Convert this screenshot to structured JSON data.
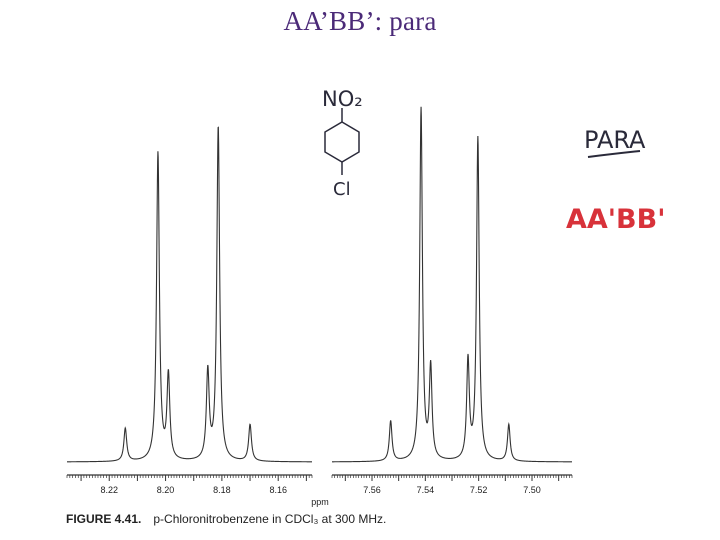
{
  "title": "AA’BB’: para",
  "caption": {
    "figure": "FIGURE 4.41.",
    "text": "p-Chloronitrobenzene in CDCl₃ at 300 MHz."
  },
  "annotations": {
    "para": "PARA",
    "aabb": "AA'BB'",
    "structure_top": "NO₂",
    "structure_bottom": "Cl"
  },
  "colors": {
    "title": "#4b2a78",
    "handwriting_red": "#d8323a",
    "trace": "#333333"
  },
  "chart_data": {
    "type": "line",
    "title": "",
    "xlabel": "ppm",
    "ylabel": "",
    "grid": false,
    "panels": [
      {
        "name": "",
        "xlim": [
          8.235,
          8.148
        ],
        "ticks": [
          {
            "value": 8.22,
            "label": "8.22"
          },
          {
            "value": 8.2,
            "label": "8.20"
          },
          {
            "value": 8.18,
            "label": "8.18"
          },
          {
            "value": 8.16,
            "label": "8.16"
          }
        ],
        "peaks": [
          {
            "ppm": 8.2143,
            "height": 0.09
          },
          {
            "ppm": 8.2027,
            "height": 0.84
          },
          {
            "ppm": 8.199,
            "height": 0.23
          },
          {
            "ppm": 8.185,
            "height": 0.24
          },
          {
            "ppm": 8.1813,
            "height": 0.91
          },
          {
            "ppm": 8.17,
            "height": 0.1
          }
        ]
      },
      {
        "name": "",
        "xlim": [
          7.575,
          7.485
        ],
        "ticks": [
          {
            "value": 7.56,
            "label": "7.56"
          },
          {
            "value": 7.54,
            "label": "7.54"
          },
          {
            "value": 7.52,
            "label": "7.52"
          },
          {
            "value": 7.5,
            "label": "7.50"
          }
        ],
        "peaks": [
          {
            "ppm": 7.553,
            "height": 0.11
          },
          {
            "ppm": 7.5416,
            "height": 0.96
          },
          {
            "ppm": 7.538,
            "height": 0.25
          },
          {
            "ppm": 7.524,
            "height": 0.27
          },
          {
            "ppm": 7.5203,
            "height": 0.88
          },
          {
            "ppm": 7.5087,
            "height": 0.1
          }
        ]
      }
    ]
  }
}
